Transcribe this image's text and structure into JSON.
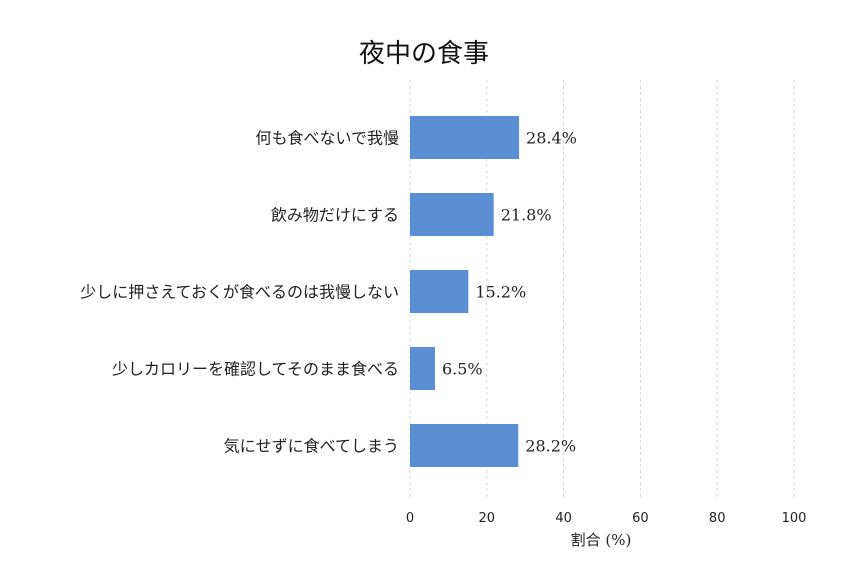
{
  "chart_data": {
    "type": "bar",
    "orientation": "horizontal",
    "title": "夜中の食事",
    "xlabel": "割合 (%)",
    "ylabel": "",
    "xlim": [
      0,
      100
    ],
    "xticks": [
      0,
      20,
      40,
      60,
      80,
      100
    ],
    "grid": true,
    "bar_color": "#5b8fd3",
    "categories": [
      "何も食べないで我慢",
      "飲み物だけにする",
      "少しに押さえておくが食べるのは我慢しない",
      "少しカロリーを確認してそのまま食べる",
      "気にせずに食べてしまう"
    ],
    "values": [
      28.4,
      21.8,
      15.2,
      6.5,
      28.2
    ],
    "value_labels": [
      "28.4%",
      "21.8%",
      "15.2%",
      "6.5%",
      "28.2%"
    ]
  }
}
